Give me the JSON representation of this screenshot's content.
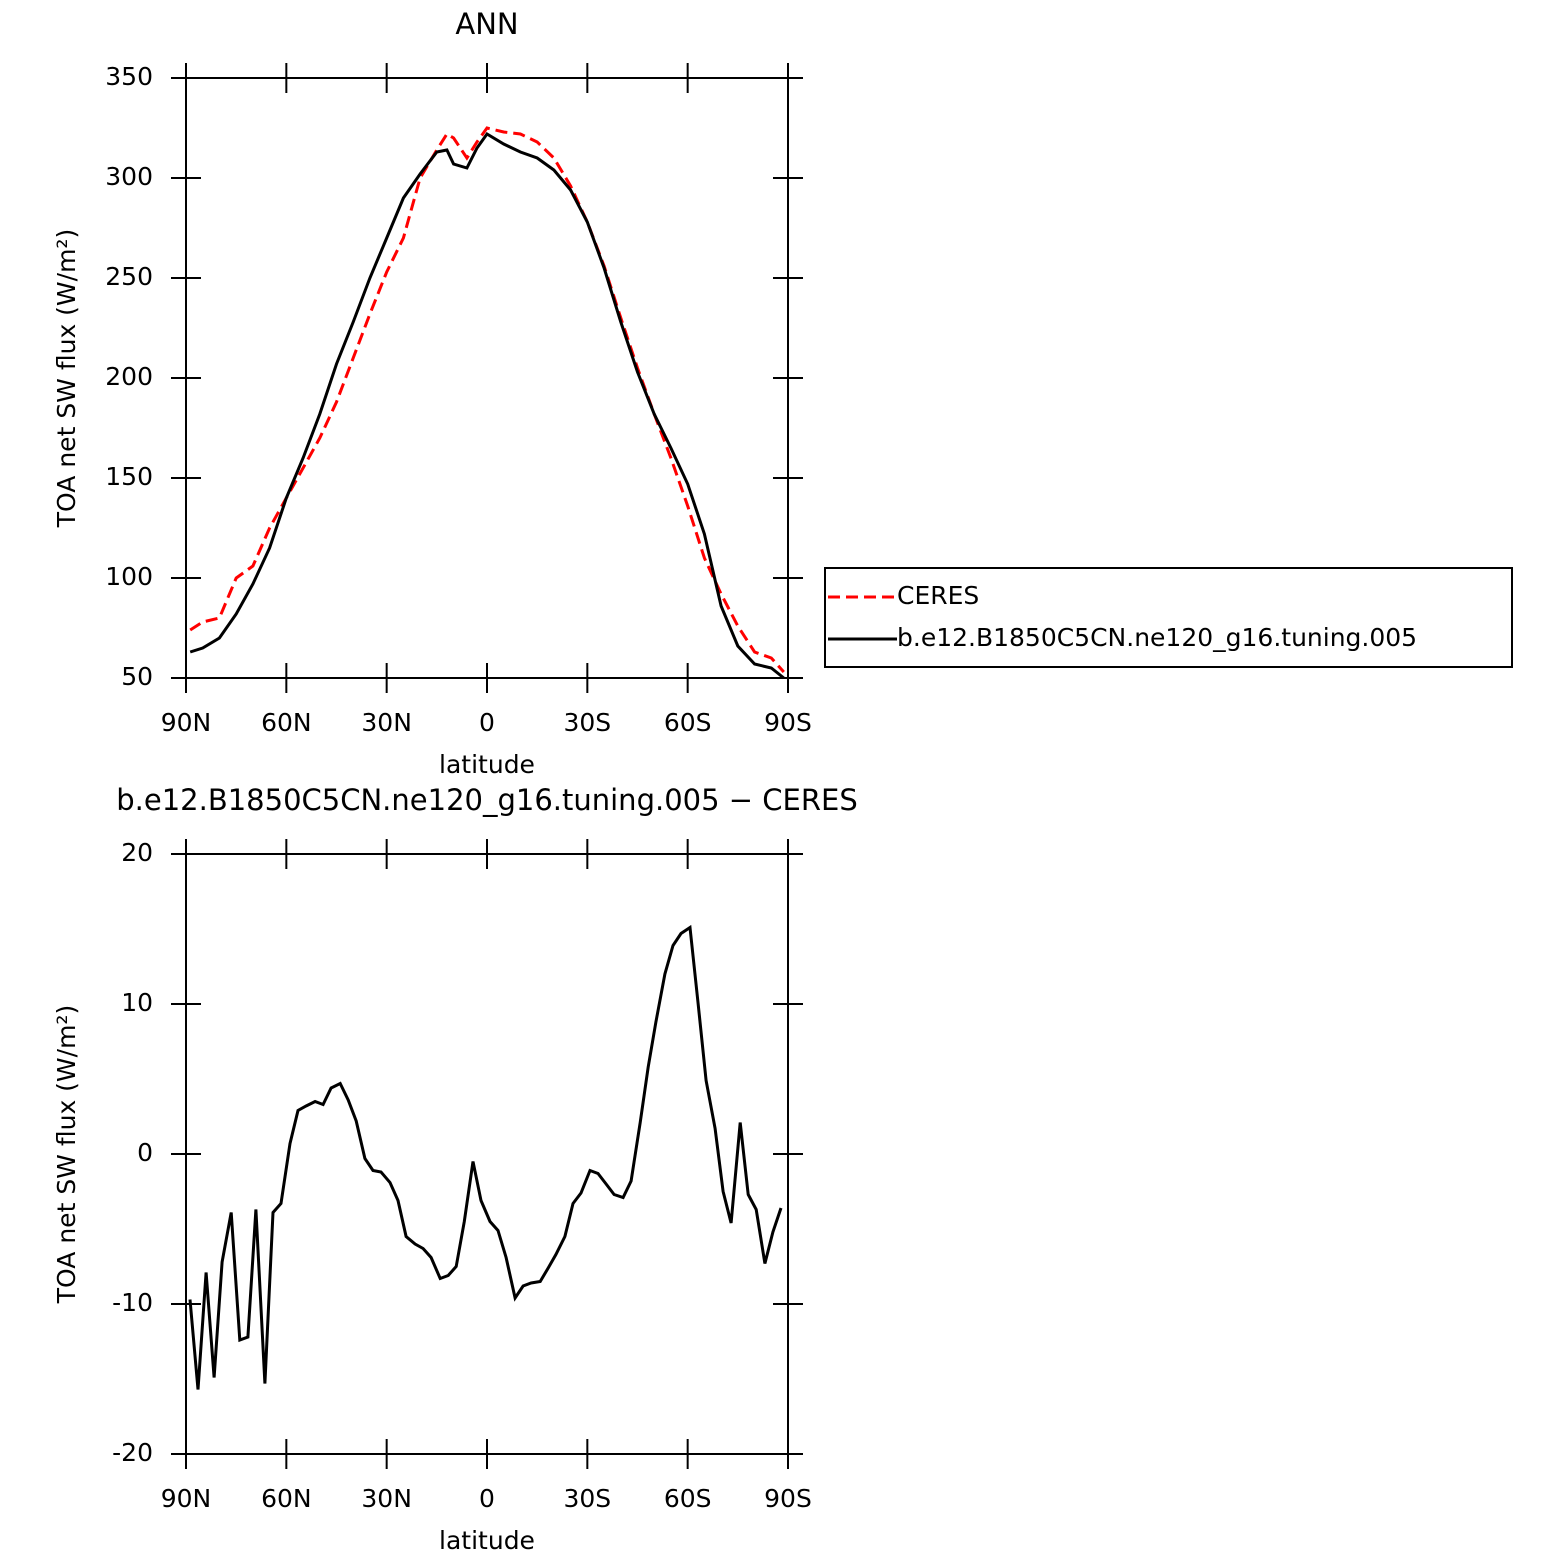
{
  "chart_data": [
    {
      "type": "line",
      "title": "ANN",
      "xlabel": "latitude",
      "ylabel": "TOA net SW flux (W/m²)",
      "x": [
        88.75,
        85,
        80,
        75,
        70,
        65,
        60,
        55,
        50,
        45,
        40,
        35,
        30,
        25,
        20,
        15,
        12,
        10,
        6,
        3,
        0,
        -5,
        -10,
        -15,
        -20,
        -25,
        -30,
        -35,
        -40,
        -45,
        -50,
        -55,
        -60,
        -65,
        -70,
        -75,
        -80,
        -85,
        -88.75
      ],
      "series": [
        {
          "name": "CERES",
          "color": "#ff0000",
          "line_style": "dashed",
          "values": [
            74,
            78,
            80,
            100,
            106,
            125,
            140,
            155,
            170,
            188,
            210,
            232,
            253,
            270,
            300,
            314,
            322,
            320,
            310,
            318,
            325,
            323,
            322,
            318,
            310,
            296,
            278,
            256,
            230,
            205,
            182,
            160,
            136,
            110,
            92,
            76,
            63,
            60,
            53
          ]
        },
        {
          "name": "b.e12.B1850C5CN.ne120_g16.tuning.005",
          "color": "#000000",
          "line_style": "solid",
          "values": [
            63,
            65,
            70,
            82,
            97,
            115,
            140,
            160,
            182,
            207,
            228,
            250,
            270,
            290,
            302,
            313,
            314,
            307,
            305,
            315,
            322,
            317,
            313,
            310,
            304,
            294,
            278,
            255,
            228,
            203,
            182,
            165,
            147,
            122,
            86,
            66,
            57,
            55,
            50
          ]
        }
      ],
      "xlim": [
        90,
        -90
      ],
      "xticks": [
        {
          "value": 90,
          "label": "90N"
        },
        {
          "value": 60,
          "label": "60N"
        },
        {
          "value": 30,
          "label": "30N"
        },
        0,
        {
          "value": -30,
          "label": "30S"
        },
        {
          "value": -60,
          "label": "60S"
        },
        {
          "value": -90,
          "label": "90S"
        }
      ],
      "ylim": [
        50,
        350
      ],
      "yticks": [
        50,
        100,
        150,
        200,
        250,
        300,
        350
      ],
      "legend": "outside-right"
    },
    {
      "type": "line",
      "title": "b.e12.B1850C5CN.ne120_g16.tuning.005 − CERES",
      "xlabel": "latitude",
      "ylabel": "TOA net SW flux (W/m²)",
      "x": [
        88.8,
        86.4,
        84.0,
        81.6,
        79.2,
        76.5,
        73.9,
        71.5,
        69.1,
        66.4,
        64.0,
        61.6,
        58.9,
        56.5,
        54.1,
        51.4,
        49.0,
        46.6,
        43.9,
        41.5,
        39.1,
        36.5,
        34.1,
        31.7,
        29.0,
        26.6,
        24.2,
        21.5,
        19.1,
        16.7,
        14.0,
        11.6,
        9.2,
        6.8,
        4.2,
        1.8,
        -0.9,
        -3.3,
        -5.7,
        -8.4,
        -10.8,
        -13.2,
        -15.9,
        -18.3,
        -20.6,
        -23.3,
        -25.7,
        -28.1,
        -30.8,
        -33.2,
        -35.6,
        -38.0,
        -40.7,
        -43.1,
        -45.8,
        -48.2,
        -50.5,
        -53.2,
        -55.6,
        -58.0,
        -60.7,
        -63.1,
        -65.5,
        -68.2,
        -70.6,
        -73.0,
        -75.7,
        -78.1,
        -80.5,
        -83.1,
        -85.5,
        -87.9
      ],
      "series": [
        {
          "color": "#000000",
          "line_style": "solid",
          "values": [
            -9.7,
            -15.7,
            -7.9,
            -14.9,
            -7.2,
            -3.9,
            -12.4,
            -12.2,
            -3.7,
            -15.3,
            -3.9,
            -3.3,
            0.7,
            2.9,
            3.2,
            3.5,
            3.3,
            4.4,
            4.7,
            3.6,
            2.2,
            -0.3,
            -1.1,
            -1.2,
            -1.9,
            -3.1,
            -5.5,
            -6.0,
            -6.3,
            -6.9,
            -8.3,
            -8.1,
            -7.5,
            -4.5,
            -0.5,
            -3.1,
            -4.5,
            -5.1,
            -6.9,
            -9.6,
            -8.8,
            -8.6,
            -8.5,
            -7.6,
            -6.7,
            -5.5,
            -3.3,
            -2.6,
            -1.1,
            -1.3,
            -2.0,
            -2.7,
            -2.9,
            -1.8,
            2.1,
            5.8,
            8.8,
            12.0,
            13.9,
            14.7,
            15.1,
            10.1,
            4.9,
            1.7,
            -2.5,
            -4.6,
            2.1,
            -2.7,
            -3.7,
            -7.3,
            -5.2,
            -3.6
          ]
        }
      ],
      "xlim": [
        90,
        -90
      ],
      "xticks": [
        {
          "value": 90,
          "label": "90N"
        },
        {
          "value": 60,
          "label": "60N"
        },
        {
          "value": 30,
          "label": "30N"
        },
        0,
        {
          "value": -30,
          "label": "30S"
        },
        {
          "value": -60,
          "label": "60S"
        },
        {
          "value": -90,
          "label": "90S"
        }
      ],
      "ylim": [
        -20,
        20
      ],
      "yticks": [
        -20,
        -10,
        0,
        10,
        20
      ]
    }
  ]
}
